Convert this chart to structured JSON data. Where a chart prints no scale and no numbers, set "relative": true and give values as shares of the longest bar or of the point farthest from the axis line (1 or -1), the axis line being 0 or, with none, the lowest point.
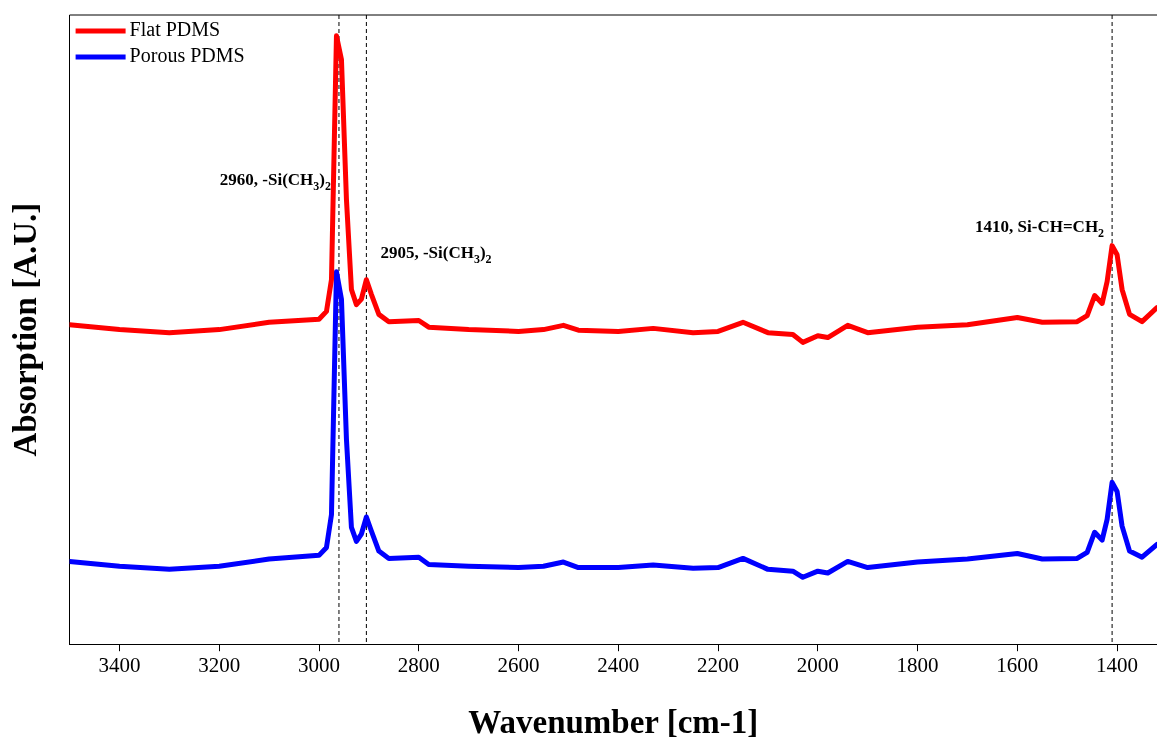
{
  "chart_data": {
    "type": "line",
    "xlabel": "Wavenumber [cm-1]",
    "ylabel": "Absorption [A.U.]",
    "relative": true,
    "x": [
      3500,
      3400,
      3300,
      3200,
      3100,
      3000,
      2985,
      2975,
      2965,
      2955,
      2945,
      2935,
      2925,
      2915,
      2905,
      2895,
      2880,
      2860,
      2800,
      2780,
      2700,
      2600,
      2550,
      2510,
      2480,
      2400,
      2330,
      2250,
      2200,
      2150,
      2100,
      2050,
      2030,
      2000,
      1980,
      1940,
      1900,
      1800,
      1700,
      1600,
      1550,
      1480,
      1460,
      1445,
      1430,
      1420,
      1410,
      1400,
      1390,
      1375,
      1350,
      1320
    ],
    "xlim": [
      3500,
      1320
    ],
    "xticks": [
      3400,
      3200,
      3000,
      2800,
      2600,
      2400,
      2200,
      2000,
      1800,
      1600,
      1400
    ],
    "series": [
      {
        "name": "Flat PDMS",
        "color": "#ff0000",
        "values": [
          0.525,
          0.517,
          0.512,
          0.517,
          0.529,
          0.534,
          0.547,
          0.599,
          1.0,
          0.961,
          0.731,
          0.583,
          0.558,
          0.567,
          0.599,
          0.575,
          0.542,
          0.53,
          0.532,
          0.521,
          0.517,
          0.514,
          0.517,
          0.524,
          0.516,
          0.514,
          0.519,
          0.512,
          0.514,
          0.529,
          0.512,
          0.509,
          0.496,
          0.507,
          0.504,
          0.524,
          0.512,
          0.521,
          0.525,
          0.537,
          0.529,
          0.53,
          0.54,
          0.573,
          0.56,
          0.596,
          0.655,
          0.64,
          0.583,
          0.542,
          0.53,
          0.553
        ]
      },
      {
        "name": "Porous PDMS",
        "color": "#0000ff",
        "values": [
          0.136,
          0.128,
          0.123,
          0.128,
          0.14,
          0.146,
          0.159,
          0.213,
          0.612,
          0.567,
          0.337,
          0.192,
          0.169,
          0.181,
          0.209,
          0.186,
          0.153,
          0.141,
          0.143,
          0.131,
          0.128,
          0.126,
          0.128,
          0.135,
          0.126,
          0.126,
          0.13,
          0.125,
          0.126,
          0.141,
          0.123,
          0.12,
          0.11,
          0.12,
          0.117,
          0.136,
          0.126,
          0.135,
          0.14,
          0.149,
          0.14,
          0.141,
          0.151,
          0.184,
          0.171,
          0.205,
          0.266,
          0.251,
          0.194,
          0.153,
          0.143,
          0.164
        ]
      }
    ],
    "marker": "none",
    "line_style": "solid",
    "legend": "top left",
    "grid": false,
    "ref_lines": [
      {
        "axis": "x",
        "value": 2960,
        "color": "#000000",
        "line_style": "dashed"
      },
      {
        "axis": "x",
        "value": 2905,
        "color": "#000000",
        "line_style": "dashed"
      },
      {
        "axis": "x",
        "value": 1410,
        "color": "#000000",
        "line_style": "dashed"
      }
    ],
    "annotations": [
      {
        "text": "2960, -Si(CH$_{3}$)$_{2}$",
        "x": 2960,
        "y": 0.755
      },
      {
        "text": "2905, -Si(CH$_{3}$)$_{2}$",
        "x": 2905,
        "y": 0.635
      },
      {
        "text": "1410, Si-CH=CH$_{2}$",
        "x": 1410,
        "y": 0.678
      }
    ]
  }
}
